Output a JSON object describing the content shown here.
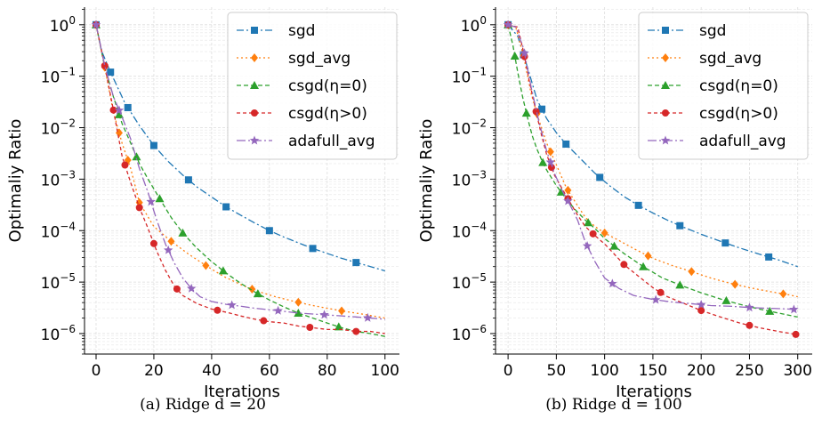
{
  "chart_data": [
    {
      "type": "line",
      "caption": "(a) Ridge d = 20",
      "xlabel": "Iterations",
      "ylabel": "Optimaliy Ratio",
      "xscale": "linear",
      "yscale": "log",
      "xlim": [
        -4,
        105
      ],
      "ylim": [
        4e-07,
        2.2
      ],
      "xticks": [
        0,
        20,
        40,
        60,
        80,
        100
      ],
      "xtick_labels": [
        "0",
        "20",
        "40",
        "60",
        "80",
        "100"
      ],
      "yticks": [
        1e-06,
        1e-05,
        0.0001,
        0.001,
        0.01,
        0.1,
        1
      ],
      "ytick_labels": [
        {
          "base": "10",
          "exp": "−6"
        },
        {
          "base": "10",
          "exp": "−5"
        },
        {
          "base": "10",
          "exp": "−4"
        },
        {
          "base": "10",
          "exp": "−3"
        },
        {
          "base": "10",
          "exp": "−2"
        },
        {
          "base": "10",
          "exp": "−1"
        },
        {
          "base": "10",
          "exp": "0"
        }
      ],
      "grid": true,
      "legend_position": "top-right",
      "series": [
        {
          "name": "sgd",
          "color": "#1f77b4",
          "dash": "8,3,2,3",
          "marker": "square",
          "x": [
            0,
            2,
            5,
            10,
            15,
            20,
            25,
            30,
            35,
            40,
            45,
            50,
            55,
            60,
            65,
            70,
            75,
            80,
            85,
            90,
            95,
            100
          ],
          "y": [
            1,
            0.3,
            0.12,
            0.03,
            0.011,
            0.0045,
            0.0022,
            0.0012,
            0.0007,
            0.00045,
            0.00029,
            0.0002,
            0.00014,
            0.0001,
            7.5e-05,
            5.8e-05,
            4.5e-05,
            3.6e-05,
            2.9e-05,
            2.4e-05,
            2e-05,
            1.65e-05
          ],
          "marker_x": [
            0,
            5,
            11,
            20,
            32,
            45,
            60,
            75,
            90
          ]
        },
        {
          "name": "sgd_avg",
          "color": "#ff7f0e",
          "dash": "2,3",
          "marker": "diamond",
          "x": [
            0,
            3,
            6,
            9,
            12,
            15,
            20,
            26,
            32,
            38,
            44,
            50,
            56,
            62,
            68,
            74,
            80,
            86,
            92,
            100
          ],
          "y": [
            1,
            0.15,
            0.02,
            0.005,
            0.0016,
            0.00035,
            0.00012,
            6.2e-05,
            3.5e-05,
            2.1e-05,
            1.3e-05,
            9e-06,
            6.6e-06,
            5.2e-06,
            4.3e-06,
            3.6e-06,
            3.1e-06,
            2.7e-06,
            2.4e-06,
            2e-06
          ],
          "marker_x": [
            0,
            3,
            8,
            11,
            15,
            26,
            38,
            54,
            70,
            85
          ]
        },
        {
          "name": "csgd(η=0)",
          "color": "#2ca02c",
          "dash": "5,3",
          "marker": "triangle",
          "x": [
            0,
            3,
            6,
            9,
            12,
            15,
            18,
            22,
            26,
            30,
            35,
            40,
            45,
            50,
            55,
            60,
            65,
            70,
            75,
            80,
            85,
            90,
            95,
            100
          ],
          "y": [
            1,
            0.15,
            0.04,
            0.012,
            0.005,
            0.002,
            0.001,
            0.00042,
            0.00018,
            9e-05,
            4.5e-05,
            2.5e-05,
            1.5e-05,
            9.5e-06,
            6.4e-06,
            4.5e-06,
            3.3e-06,
            2.5e-06,
            2e-06,
            1.6e-06,
            1.3e-06,
            1.1e-06,
            1e-06,
            8.8e-07
          ],
          "marker_x": [
            0,
            8,
            14,
            22,
            30,
            44,
            56,
            70,
            84
          ]
        },
        {
          "name": "csgd(η>0)",
          "color": "#d62728",
          "dash": "4,3",
          "marker": "circle",
          "x": [
            0,
            3,
            6,
            9,
            12,
            15,
            18,
            21,
            24,
            27,
            30,
            35,
            40,
            45,
            50,
            55,
            60,
            65,
            70,
            75,
            80,
            85,
            90,
            95,
            100
          ],
          "y": [
            1,
            0.16,
            0.022,
            0.0028,
            0.00085,
            0.00028,
            0.00011,
            4e-05,
            1.7e-05,
            8.5e-06,
            5.5e-06,
            3.8e-06,
            3e-06,
            2.6e-06,
            2.2e-06,
            1.9e-06,
            1.7e-06,
            1.6e-06,
            1.4e-06,
            1.3e-06,
            1.2e-06,
            1.2e-06,
            1.1e-06,
            1.1e-06,
            1e-06
          ],
          "marker_x": [
            0,
            3,
            6,
            10,
            15,
            20,
            28,
            42,
            58,
            74,
            90
          ]
        },
        {
          "name": "adafull_avg",
          "color": "#9467bd",
          "dash": "10,3,2,3",
          "marker": "star",
          "x": [
            0,
            3,
            6,
            9,
            12,
            15,
            18,
            21,
            24,
            27,
            30,
            33,
            36,
            40,
            45,
            50,
            55,
            60,
            65,
            70,
            75,
            80,
            85,
            90,
            95,
            100
          ],
          "y": [
            1,
            0.16,
            0.04,
            0.016,
            0.006,
            0.0016,
            0.00055,
            0.00016,
            5.5e-05,
            2.4e-05,
            1.2e-05,
            7.5e-06,
            5.2e-06,
            4.2e-06,
            3.7e-06,
            3.4e-06,
            3.1e-06,
            2.9e-06,
            2.7e-06,
            2.5e-06,
            2.4e-06,
            2.3e-06,
            2.2e-06,
            2.1e-06,
            2e-06,
            1.9e-06
          ],
          "marker_x": [
            0,
            8,
            19,
            25,
            33,
            47,
            63,
            79,
            94
          ]
        }
      ]
    },
    {
      "type": "line",
      "caption": "(b) Ridge d = 100",
      "xlabel": "Iterations",
      "ylabel": "Optimaliy Ratio",
      "xscale": "linear",
      "yscale": "log",
      "xlim": [
        -13,
        315
      ],
      "ylim": [
        4e-07,
        2.2
      ],
      "xticks": [
        0,
        50,
        100,
        150,
        200,
        250,
        300
      ],
      "xtick_labels": [
        "0",
        "50",
        "100",
        "150",
        "200",
        "250",
        "300"
      ],
      "yticks": [
        1e-06,
        1e-05,
        0.0001,
        0.001,
        0.01,
        0.1,
        1
      ],
      "ytick_labels": [
        {
          "base": "10",
          "exp": "−6"
        },
        {
          "base": "10",
          "exp": "−5"
        },
        {
          "base": "10",
          "exp": "−4"
        },
        {
          "base": "10",
          "exp": "−3"
        },
        {
          "base": "10",
          "exp": "−2"
        },
        {
          "base": "10",
          "exp": "−1"
        },
        {
          "base": "10",
          "exp": "0"
        }
      ],
      "grid": true,
      "legend_position": "top-right",
      "series": [
        {
          "name": "sgd",
          "color": "#1f77b4",
          "dash": "8,3,2,3",
          "marker": "square",
          "x": [
            0,
            10,
            20,
            30,
            40,
            50,
            60,
            75,
            90,
            105,
            120,
            135,
            150,
            165,
            180,
            200,
            220,
            240,
            260,
            280,
            300
          ],
          "y": [
            1,
            0.6,
            0.15,
            0.035,
            0.015,
            0.008,
            0.0048,
            0.0025,
            0.0013,
            0.00075,
            0.00046,
            0.00031,
            0.00022,
            0.00016,
            0.00012,
            8.5e-05,
            6.2e-05,
            4.6e-05,
            3.5e-05,
            2.7e-05,
            2e-05
          ],
          "marker_x": [
            0,
            16,
            35,
            60,
            95,
            135,
            178,
            225,
            270
          ]
        },
        {
          "name": "sgd_avg",
          "color": "#ff7f0e",
          "dash": "2,3",
          "marker": "diamond",
          "x": [
            0,
            8,
            16,
            24,
            32,
            40,
            50,
            60,
            70,
            80,
            90,
            100,
            115,
            130,
            150,
            170,
            190,
            210,
            230,
            250,
            270,
            290,
            300
          ],
          "y": [
            1,
            0.9,
            0.25,
            0.045,
            0.014,
            0.005,
            0.0019,
            0.0007,
            0.00035,
            0.00018,
            0.00012,
            9e-05,
            6.4e-05,
            4.5e-05,
            2.9e-05,
            2.1e-05,
            1.6e-05,
            1.2e-05,
            9.5e-06,
            7.8e-06,
            6.6e-06,
            5.7e-06,
            5.2e-06
          ],
          "marker_x": [
            0,
            16,
            30,
            44,
            62,
            100,
            145,
            190,
            235,
            285
          ]
        },
        {
          "name": "csgd(η=0)",
          "color": "#2ca02c",
          "dash": "5,3",
          "marker": "triangle",
          "x": [
            0,
            5,
            10,
            15,
            20,
            25,
            30,
            35,
            40,
            50,
            60,
            70,
            80,
            90,
            100,
            120,
            140,
            160,
            180,
            200,
            220,
            240,
            260,
            280,
            300
          ],
          "y": [
            1,
            0.4,
            0.12,
            0.04,
            0.016,
            0.007,
            0.0038,
            0.0023,
            0.0015,
            0.00075,
            0.00042,
            0.00025,
            0.00016,
            0.00011,
            7e-05,
            3.6e-05,
            2e-05,
            1.2e-05,
            8.5e-06,
            6.2e-06,
            4.7e-06,
            3.7e-06,
            3e-06,
            2.5e-06,
            2.1e-06
          ],
          "marker_x": [
            0,
            7,
            19,
            36,
            55,
            83,
            110,
            140,
            178,
            226,
            271
          ]
        },
        {
          "name": "csgd(η>0)",
          "color": "#d62728",
          "dash": "4,3",
          "marker": "circle",
          "x": [
            0,
            10,
            16,
            22,
            28,
            34,
            40,
            48,
            56,
            64,
            72,
            80,
            90,
            100,
            110,
            120,
            135,
            150,
            165,
            180,
            200,
            220,
            240,
            260,
            280,
            300
          ],
          "y": [
            1,
            0.9,
            0.3,
            0.08,
            0.025,
            0.008,
            0.003,
            0.0012,
            0.00065,
            0.00036,
            0.0002,
            0.00012,
            8e-05,
            5.5e-05,
            3.5e-05,
            2.2e-05,
            1.3e-05,
            7.8e-06,
            5.2e-06,
            4e-06,
            2.8e-06,
            2.1e-06,
            1.6e-06,
            1.3e-06,
            1.1e-06,
            9.5e-07
          ],
          "marker_x": [
            0,
            17,
            29,
            45,
            62,
            88,
            120,
            158,
            200,
            250,
            298
          ]
        },
        {
          "name": "adafull_avg",
          "color": "#9467bd",
          "dash": "10,3,2,3",
          "marker": "star",
          "x": [
            0,
            8,
            16,
            24,
            32,
            40,
            48,
            56,
            64,
            72,
            80,
            90,
            100,
            115,
            130,
            150,
            170,
            190,
            210,
            230,
            250,
            270,
            290,
            300
          ],
          "y": [
            1,
            0.9,
            0.35,
            0.06,
            0.013,
            0.0035,
            0.0013,
            0.0006,
            0.00032,
            0.00016,
            6e-05,
            2.5e-05,
            1.2e-05,
            7.5e-06,
            5.5e-06,
            4.6e-06,
            4.1e-06,
            3.8e-06,
            3.5e-06,
            3.4e-06,
            3.2e-06,
            3.1e-06,
            3e-06,
            2.9e-06
          ],
          "marker_x": [
            0,
            17,
            44,
            62,
            82,
            108,
            153,
            200,
            250,
            296
          ]
        }
      ]
    }
  ]
}
